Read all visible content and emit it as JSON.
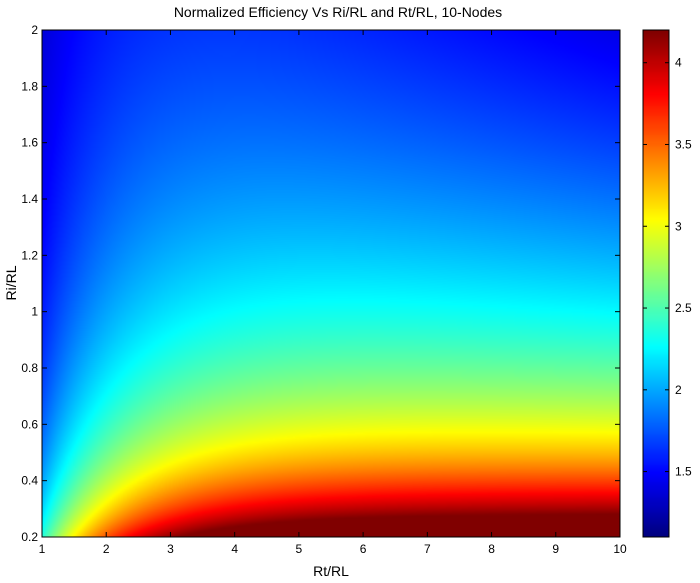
{
  "chart_data": {
    "type": "heatmap",
    "title": "Normalized Efficiency Vs Ri/RL and Rt/RL, 10-Nodes",
    "xlabel": "Rt/RL",
    "ylabel": "Ri/RL",
    "xlim": [
      1,
      10
    ],
    "ylim": [
      0.2,
      2
    ],
    "xticks": [
      "1",
      "2",
      "3",
      "4",
      "5",
      "6",
      "7",
      "8",
      "9",
      "10"
    ],
    "yticks": [
      "0.2",
      "0.4",
      "0.6",
      "0.8",
      "1",
      "1.2",
      "1.4",
      "1.6",
      "1.8",
      "2"
    ],
    "colorbar": {
      "range": [
        1.1,
        4.2
      ],
      "ticks": [
        "1.5",
        "2",
        "2.5",
        "3",
        "3.5",
        "4"
      ],
      "colormap": "jet"
    },
    "grid": false,
    "value_samples": [
      {
        "x": 1.0,
        "y": 0.2,
        "value": 2.1
      },
      {
        "x": 2.0,
        "y": 0.2,
        "value": 3.0
      },
      {
        "x": 5.0,
        "y": 0.2,
        "value": 3.8
      },
      {
        "x": 10.0,
        "y": 0.2,
        "value": 4.2
      },
      {
        "x": 5.0,
        "y": 0.4,
        "value": 3.2
      },
      {
        "x": 5.0,
        "y": 0.6,
        "value": 2.6
      },
      {
        "x": 5.0,
        "y": 0.8,
        "value": 2.2
      },
      {
        "x": 5.0,
        "y": 1.0,
        "value": 1.9
      },
      {
        "x": 5.0,
        "y": 1.4,
        "value": 1.6
      },
      {
        "x": 10.0,
        "y": 2.0,
        "value": 1.1
      },
      {
        "x": 1.0,
        "y": 2.0,
        "value": 1.3
      },
      {
        "x": 3.0,
        "y": 2.0,
        "value": 1.2
      }
    ]
  }
}
